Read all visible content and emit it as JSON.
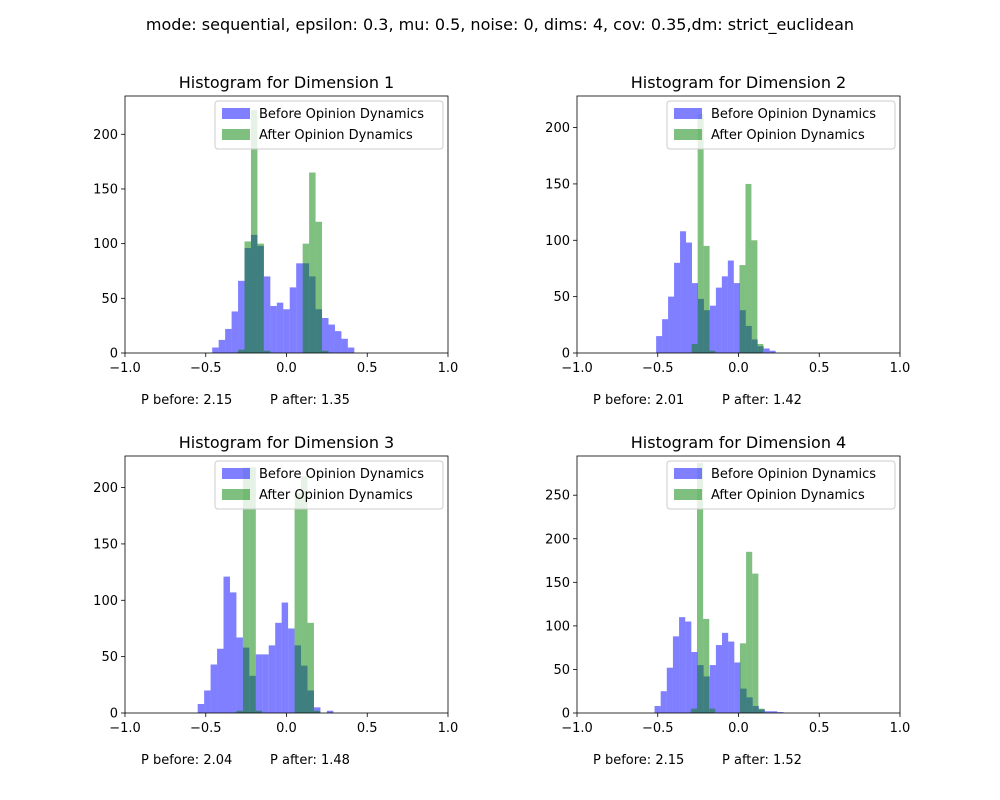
{
  "figure": {
    "suptitle": "mode: sequential, epsilon: 0.3, mu: 0.5, noise: 0, dims: 4, cov: 0.35,dm: strict_euclidean"
  },
  "colors": {
    "before": "#0000ff",
    "after": "#008000",
    "overlap_note": "bars drawn with alpha 0.5"
  },
  "chart_data": [
    {
      "type": "bar",
      "title": "Histogram for Dimension 1",
      "xlim": [
        -1.0,
        1.0
      ],
      "ylim": [
        0,
        235
      ],
      "xticks": [
        "−1.0",
        "−0.5",
        "0.0",
        "0.5",
        "1.0"
      ],
      "xtick_values": [
        -1.0,
        -0.5,
        0.0,
        0.5,
        1.0
      ],
      "yticks": [
        0,
        50,
        100,
        150,
        200
      ],
      "legend": "top-right",
      "annotations": [
        "P before: 2.15",
        "P after: 1.35"
      ],
      "series": [
        {
          "name": "Before Opinion Dynamics",
          "color": "#0000ff",
          "bin_start": -0.46,
          "bin_width": 0.04,
          "values": [
            5,
            12,
            22,
            38,
            66,
            96,
            108,
            98,
            70,
            43,
            46,
            40,
            60,
            82,
            82,
            70,
            40,
            32,
            26,
            20,
            13,
            5
          ]
        },
        {
          "name": "After Opinion Dynamics",
          "color": "#008000",
          "bin_start": -0.3,
          "bin_width": 0.04,
          "values": [
            3,
            102,
            222,
            100,
            2,
            0,
            0,
            0,
            0,
            0,
            100,
            165,
            120,
            2,
            0,
            0
          ]
        }
      ]
    },
    {
      "type": "bar",
      "title": "Histogram for Dimension 2",
      "xlim": [
        -1.0,
        1.0
      ],
      "ylim": [
        0,
        228
      ],
      "xticks": [
        "−1.0",
        "−0.5",
        "0.0",
        "0.5",
        "1.0"
      ],
      "xtick_values": [
        -1.0,
        -0.5,
        0.0,
        0.5,
        1.0
      ],
      "yticks": [
        0,
        50,
        100,
        150,
        200
      ],
      "legend": "top-right",
      "annotations": [
        "P before: 2.01",
        "P after: 1.42"
      ],
      "series": [
        {
          "name": "Before Opinion Dynamics",
          "color": "#0000ff",
          "bin_start": -0.51,
          "bin_width": 0.037,
          "values": [
            15,
            30,
            50,
            80,
            108,
            98,
            62,
            48,
            38,
            42,
            58,
            68,
            82,
            62,
            38,
            24,
            12,
            6,
            4,
            2
          ]
        },
        {
          "name": "After Opinion Dynamics",
          "color": "#008000",
          "bin_start": -0.29,
          "bin_width": 0.037,
          "values": [
            8,
            212,
            95,
            2,
            0,
            0,
            0,
            0,
            78,
            150,
            100,
            8,
            0
          ]
        }
      ]
    },
    {
      "type": "bar",
      "title": "Histogram for Dimension 3",
      "xlim": [
        -1.0,
        1.0
      ],
      "ylim": [
        0,
        228
      ],
      "xticks": [
        "−1.0",
        "−0.5",
        "0.0",
        "0.5",
        "1.0"
      ],
      "xtick_values": [
        -1.0,
        -0.5,
        0.0,
        0.5,
        1.0
      ],
      "yticks": [
        0,
        50,
        100,
        150,
        200
      ],
      "legend": "top-right",
      "annotations": [
        "P before: 2.04",
        "P after: 1.48"
      ],
      "series": [
        {
          "name": "Before Opinion Dynamics",
          "color": "#0000ff",
          "bin_start": -0.55,
          "bin_width": 0.04,
          "values": [
            8,
            20,
            43,
            57,
            121,
            107,
            67,
            58,
            33,
            52,
            52,
            60,
            80,
            98,
            75,
            60,
            42,
            20,
            5,
            0,
            2
          ]
        },
        {
          "name": "After Opinion Dynamics",
          "color": "#008000",
          "bin_start": -0.31,
          "bin_width": 0.04,
          "values": [
            2,
            218,
            218,
            2,
            0,
            0,
            0,
            0,
            0,
            195,
            210,
            80,
            2,
            0
          ]
        }
      ]
    },
    {
      "type": "bar",
      "title": "Histogram for Dimension 4",
      "xlim": [
        -1.0,
        1.0
      ],
      "ylim": [
        0,
        295
      ],
      "xticks": [
        "−1.0",
        "−0.5",
        "0.0",
        "0.5",
        "1.0"
      ],
      "xtick_values": [
        -1.0,
        -0.5,
        0.0,
        0.5,
        1.0
      ],
      "yticks": [
        0,
        50,
        100,
        150,
        200,
        250
      ],
      "legend": "top-right",
      "annotations": [
        "P before: 2.15",
        "P after: 1.52"
      ],
      "series": [
        {
          "name": "Before Opinion Dynamics",
          "color": "#0000ff",
          "bin_start": -0.52,
          "bin_width": 0.038,
          "values": [
            8,
            25,
            52,
            88,
            110,
            105,
            70,
            55,
            42,
            55,
            78,
            92,
            82,
            58,
            28,
            18,
            8,
            4,
            2,
            2,
            1
          ]
        },
        {
          "name": "After Opinion Dynamics",
          "color": "#008000",
          "bin_start": -0.295,
          "bin_width": 0.038,
          "values": [
            5,
            287,
            108,
            5,
            0,
            0,
            0,
            0,
            80,
            185,
            160,
            5,
            0
          ]
        }
      ]
    }
  ]
}
